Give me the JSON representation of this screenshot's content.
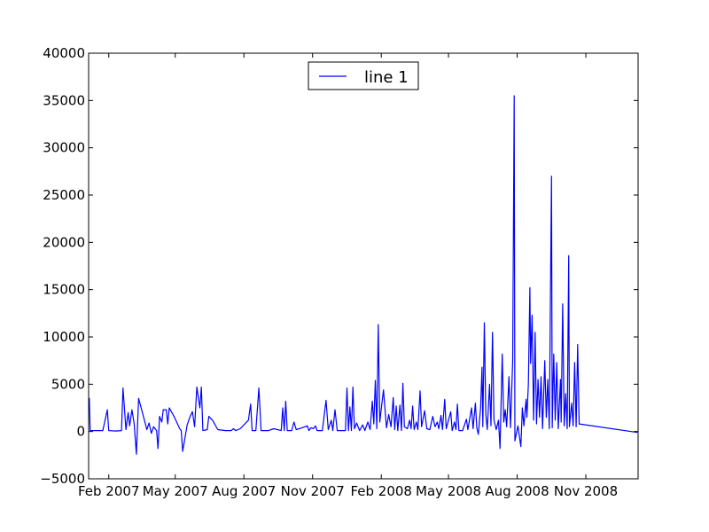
{
  "chart_data": {
    "type": "line",
    "title": "",
    "xlabel": "",
    "ylabel": "",
    "xlim": [
      "2007-01-05",
      "2009-01-10"
    ],
    "ylim": [
      -5000,
      40000
    ],
    "yticks": [
      -5000,
      0,
      5000,
      10000,
      15000,
      20000,
      25000,
      30000,
      35000,
      40000
    ],
    "ytick_labels": [
      "−5000",
      "0",
      "5000",
      "10000",
      "15000",
      "20000",
      "25000",
      "30000",
      "35000",
      "40000"
    ],
    "xticks": [
      {
        "label": "Feb 2007",
        "date": "2007-02-01"
      },
      {
        "label": "May 2007",
        "date": "2007-05-01"
      },
      {
        "label": "Aug 2007",
        "date": "2007-08-01"
      },
      {
        "label": "Nov 2007",
        "date": "2007-11-01"
      },
      {
        "label": "Feb 2008",
        "date": "2008-02-01"
      },
      {
        "label": "May 2008",
        "date": "2008-05-01"
      },
      {
        "label": "Aug 2008",
        "date": "2008-08-01"
      },
      {
        "label": "Nov 2008",
        "date": "2008-11-01"
      }
    ],
    "grid": false,
    "legend_position": "top-center",
    "color": "#0000ff",
    "series": [
      {
        "name": "line 1",
        "points": [
          [
            "2007-01-05",
            3000
          ],
          [
            "2007-01-06",
            3500
          ],
          [
            "2007-01-07",
            100
          ],
          [
            "2007-01-15",
            100
          ],
          [
            "2007-01-24",
            100
          ],
          [
            "2007-01-30",
            2300
          ],
          [
            "2007-02-01",
            100
          ],
          [
            "2007-02-10",
            50
          ],
          [
            "2007-02-18",
            100
          ],
          [
            "2007-02-20",
            4600
          ],
          [
            "2007-02-24",
            200
          ],
          [
            "2007-02-27",
            2000
          ],
          [
            "2007-03-01",
            600
          ],
          [
            "2007-03-04",
            2300
          ],
          [
            "2007-03-07",
            800
          ],
          [
            "2007-03-10",
            -2400
          ],
          [
            "2007-03-13",
            3500
          ],
          [
            "2007-03-18",
            2000
          ],
          [
            "2007-03-24",
            200
          ],
          [
            "2007-03-27",
            900
          ],
          [
            "2007-03-30",
            -200
          ],
          [
            "2007-04-02",
            500
          ],
          [
            "2007-04-06",
            100
          ],
          [
            "2007-04-08",
            -1800
          ],
          [
            "2007-04-10",
            1600
          ],
          [
            "2007-04-13",
            1000
          ],
          [
            "2007-04-15",
            2300
          ],
          [
            "2007-04-19",
            2300
          ],
          [
            "2007-04-21",
            800
          ],
          [
            "2007-04-23",
            2500
          ],
          [
            "2007-04-30",
            1500
          ],
          [
            "2007-05-07",
            300
          ],
          [
            "2007-05-09",
            100
          ],
          [
            "2007-05-11",
            -2100
          ],
          [
            "2007-05-17",
            700
          ],
          [
            "2007-05-21",
            1600
          ],
          [
            "2007-05-24",
            2100
          ],
          [
            "2007-05-27",
            500
          ],
          [
            "2007-05-30",
            4700
          ],
          [
            "2007-06-03",
            2500
          ],
          [
            "2007-06-05",
            4700
          ],
          [
            "2007-06-07",
            100
          ],
          [
            "2007-06-13",
            200
          ],
          [
            "2007-06-15",
            1600
          ],
          [
            "2007-06-20",
            1200
          ],
          [
            "2007-06-27",
            200
          ],
          [
            "2007-07-07",
            100
          ],
          [
            "2007-07-15",
            100
          ],
          [
            "2007-07-18",
            300
          ],
          [
            "2007-07-21",
            100
          ],
          [
            "2007-07-27",
            300
          ],
          [
            "2007-08-07",
            1200
          ],
          [
            "2007-08-10",
            2900
          ],
          [
            "2007-08-12",
            100
          ],
          [
            "2007-08-17",
            100
          ],
          [
            "2007-08-21",
            4600
          ],
          [
            "2007-08-24",
            100
          ],
          [
            "2007-09-03",
            100
          ],
          [
            "2007-09-10",
            300
          ],
          [
            "2007-09-20",
            100
          ],
          [
            "2007-09-22",
            2500
          ],
          [
            "2007-09-24",
            100
          ],
          [
            "2007-09-26",
            3200
          ],
          [
            "2007-09-28",
            100
          ],
          [
            "2007-10-04",
            100
          ],
          [
            "2007-10-07",
            1000
          ],
          [
            "2007-10-10",
            200
          ],
          [
            "2007-10-18",
            400
          ],
          [
            "2007-10-25",
            600
          ],
          [
            "2007-10-27",
            100
          ],
          [
            "2007-10-30",
            400
          ],
          [
            "2007-11-02",
            300
          ],
          [
            "2007-11-05",
            600
          ],
          [
            "2007-11-07",
            100
          ],
          [
            "2007-11-14",
            100
          ],
          [
            "2007-11-19",
            3300
          ],
          [
            "2007-11-22",
            200
          ],
          [
            "2007-11-26",
            1200
          ],
          [
            "2007-11-28",
            100
          ],
          [
            "2007-12-01",
            2300
          ],
          [
            "2007-12-04",
            100
          ],
          [
            "2007-12-10",
            100
          ],
          [
            "2007-12-15",
            100
          ],
          [
            "2007-12-17",
            4600
          ],
          [
            "2007-12-19",
            100
          ],
          [
            "2007-12-21",
            2600
          ],
          [
            "2007-12-23",
            100
          ],
          [
            "2007-12-25",
            4700
          ],
          [
            "2007-12-27",
            300
          ],
          [
            "2007-12-30",
            900
          ],
          [
            "2008-01-03",
            100
          ],
          [
            "2008-01-07",
            700
          ],
          [
            "2008-01-10",
            100
          ],
          [
            "2008-01-14",
            1000
          ],
          [
            "2008-01-17",
            200
          ],
          [
            "2008-01-20",
            3200
          ],
          [
            "2008-01-22",
            800
          ],
          [
            "2008-01-24",
            5400
          ],
          [
            "2008-01-26",
            300
          ],
          [
            "2008-01-28",
            11300
          ],
          [
            "2008-01-30",
            1000
          ],
          [
            "2008-02-04",
            4400
          ],
          [
            "2008-02-08",
            400
          ],
          [
            "2008-02-11",
            1800
          ],
          [
            "2008-02-14",
            500
          ],
          [
            "2008-02-17",
            3600
          ],
          [
            "2008-02-19",
            200
          ],
          [
            "2008-02-21",
            2700
          ],
          [
            "2008-02-23",
            100
          ],
          [
            "2008-02-26",
            2800
          ],
          [
            "2008-02-28",
            100
          ],
          [
            "2008-03-01",
            5100
          ],
          [
            "2008-03-03",
            500
          ],
          [
            "2008-03-07",
            300
          ],
          [
            "2008-03-10",
            1200
          ],
          [
            "2008-03-12",
            300
          ],
          [
            "2008-03-14",
            2700
          ],
          [
            "2008-03-16",
            200
          ],
          [
            "2008-03-19",
            1000
          ],
          [
            "2008-03-21",
            200
          ],
          [
            "2008-03-24",
            4300
          ],
          [
            "2008-03-26",
            500
          ],
          [
            "2008-03-30",
            2200
          ],
          [
            "2008-04-02",
            300
          ],
          [
            "2008-04-06",
            200
          ],
          [
            "2008-04-10",
            1600
          ],
          [
            "2008-04-13",
            500
          ],
          [
            "2008-04-16",
            1000
          ],
          [
            "2008-04-18",
            300
          ],
          [
            "2008-04-21",
            1700
          ],
          [
            "2008-04-23",
            200
          ],
          [
            "2008-04-26",
            3400
          ],
          [
            "2008-04-28",
            300
          ],
          [
            "2008-05-04",
            2100
          ],
          [
            "2008-05-06",
            100
          ],
          [
            "2008-05-09",
            1000
          ],
          [
            "2008-05-11",
            200
          ],
          [
            "2008-05-13",
            2900
          ],
          [
            "2008-05-15",
            100
          ],
          [
            "2008-05-20",
            100
          ],
          [
            "2008-05-25",
            1300
          ],
          [
            "2008-05-27",
            200
          ],
          [
            "2008-06-01",
            2500
          ],
          [
            "2008-06-03",
            300
          ],
          [
            "2008-06-06",
            3000
          ],
          [
            "2008-06-08",
            400
          ],
          [
            "2008-06-10",
            -300
          ],
          [
            "2008-06-13",
            2500
          ],
          [
            "2008-06-15",
            6800
          ],
          [
            "2008-06-16",
            500
          ],
          [
            "2008-06-18",
            11500
          ],
          [
            "2008-06-20",
            1800
          ],
          [
            "2008-06-22",
            200
          ],
          [
            "2008-06-25",
            5000
          ],
          [
            "2008-06-27",
            600
          ],
          [
            "2008-06-29",
            10500
          ],
          [
            "2008-07-01",
            1200
          ],
          [
            "2008-07-04",
            200
          ],
          [
            "2008-07-07",
            1200
          ],
          [
            "2008-07-09",
            -1800
          ],
          [
            "2008-07-12",
            8200
          ],
          [
            "2008-07-14",
            1000
          ],
          [
            "2008-07-16",
            2300
          ],
          [
            "2008-07-18",
            500
          ],
          [
            "2008-07-21",
            5800
          ],
          [
            "2008-07-23",
            400
          ],
          [
            "2008-07-26",
            7500
          ],
          [
            "2008-07-28",
            35500
          ],
          [
            "2008-07-29",
            -1000
          ],
          [
            "2008-08-02",
            600
          ],
          [
            "2008-08-06",
            -1600
          ],
          [
            "2008-08-08",
            2500
          ],
          [
            "2008-08-10",
            600
          ],
          [
            "2008-08-13",
            3400
          ],
          [
            "2008-08-14",
            1500
          ],
          [
            "2008-08-16",
            5000
          ],
          [
            "2008-08-18",
            15200
          ],
          [
            "2008-08-19",
            7200
          ],
          [
            "2008-08-21",
            12300
          ],
          [
            "2008-08-23",
            1200
          ],
          [
            "2008-08-25",
            10500
          ],
          [
            "2008-08-27",
            800
          ],
          [
            "2008-08-29",
            5500
          ],
          [
            "2008-08-31",
            1500
          ],
          [
            "2008-09-02",
            5800
          ],
          [
            "2008-09-04",
            300
          ],
          [
            "2008-09-07",
            7500
          ],
          [
            "2008-09-09",
            1500
          ],
          [
            "2008-09-11",
            5500
          ],
          [
            "2008-09-13",
            300
          ],
          [
            "2008-09-16",
            27000
          ],
          [
            "2008-09-17",
            400
          ],
          [
            "2008-09-19",
            8200
          ],
          [
            "2008-09-21",
            1200
          ],
          [
            "2008-09-23",
            7300
          ],
          [
            "2008-09-25",
            300
          ],
          [
            "2008-09-28",
            5500
          ],
          [
            "2008-09-29",
            1000
          ],
          [
            "2008-10-01",
            13500
          ],
          [
            "2008-10-03",
            600
          ],
          [
            "2008-10-05",
            4000
          ],
          [
            "2008-10-07",
            300
          ],
          [
            "2008-10-09",
            18600
          ],
          [
            "2008-10-10",
            500
          ],
          [
            "2008-10-13",
            3000
          ],
          [
            "2008-10-15",
            600
          ],
          [
            "2008-10-17",
            7300
          ],
          [
            "2008-10-19",
            500
          ],
          [
            "2008-10-21",
            9200
          ],
          [
            "2008-10-23",
            800
          ],
          [
            "2009-01-09",
            -100
          ]
        ]
      }
    ]
  }
}
